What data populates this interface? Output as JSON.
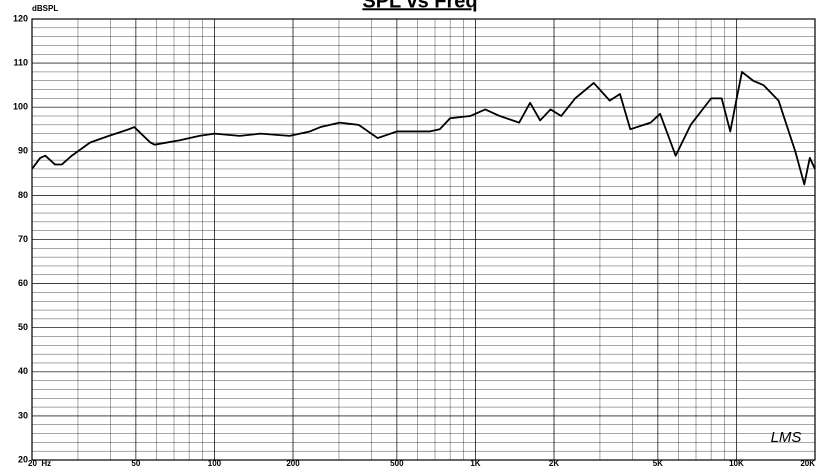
{
  "chart_data": {
    "type": "line",
    "title": "SPL vs Freq",
    "y_label": "dBSPL",
    "watermark": "LMS",
    "log_x": true,
    "grid": true,
    "yminor": 2,
    "xlim": [
      20,
      20000
    ],
    "ylim": [
      20,
      120
    ],
    "xticks": [
      {
        "value": 20,
        "label": "20  Hz"
      },
      50,
      100,
      200,
      500,
      {
        "value": 1000,
        "label": "1K"
      },
      {
        "value": 2000,
        "label": "2K"
      },
      {
        "value": 5000,
        "label": "5K"
      },
      {
        "value": 10000,
        "label": "10K"
      },
      {
        "value": 20000,
        "label": "20K"
      }
    ],
    "yticks": [
      20,
      30,
      40,
      50,
      60,
      70,
      80,
      90,
      100,
      110,
      120
    ],
    "x": [
      20,
      21.5,
      22.5,
      24.5,
      26,
      28.4,
      33.4,
      39.4,
      47,
      49.3,
      56.8,
      59,
      73.7,
      87.5,
      100,
      125,
      150,
      194,
      232,
      255,
      302,
      357,
      422,
      500,
      667,
      730,
      800,
      955,
      1090,
      1240,
      1470,
      1620,
      1770,
      1940,
      2130,
      2410,
      2840,
      3270,
      3580,
      3920,
      4690,
      5100,
      5850,
      6680,
      8000,
      8780,
      9470,
      10100,
      10500,
      11600,
      12700,
      14500,
      16800,
      18200,
      19100,
      20000
    ],
    "series": [
      {
        "name": "SPL",
        "color": "#000000",
        "values": [
          86,
          88.5,
          89,
          87,
          87,
          89,
          92,
          93.5,
          95,
          95.5,
          92,
          91.5,
          92.5,
          93.5,
          94,
          93.5,
          94,
          93.5,
          94.5,
          95.5,
          96.5,
          96,
          93,
          94.5,
          94.5,
          95,
          97.5,
          98,
          99.5,
          98,
          96.5,
          101,
          97,
          99.5,
          98,
          102,
          105.5,
          101.5,
          103,
          95,
          96.5,
          98.5,
          89,
          96,
          102,
          102,
          94.5,
          103,
          108,
          106,
          105,
          101.5,
          90,
          82.5,
          88.5,
          86
        ]
      }
    ]
  }
}
